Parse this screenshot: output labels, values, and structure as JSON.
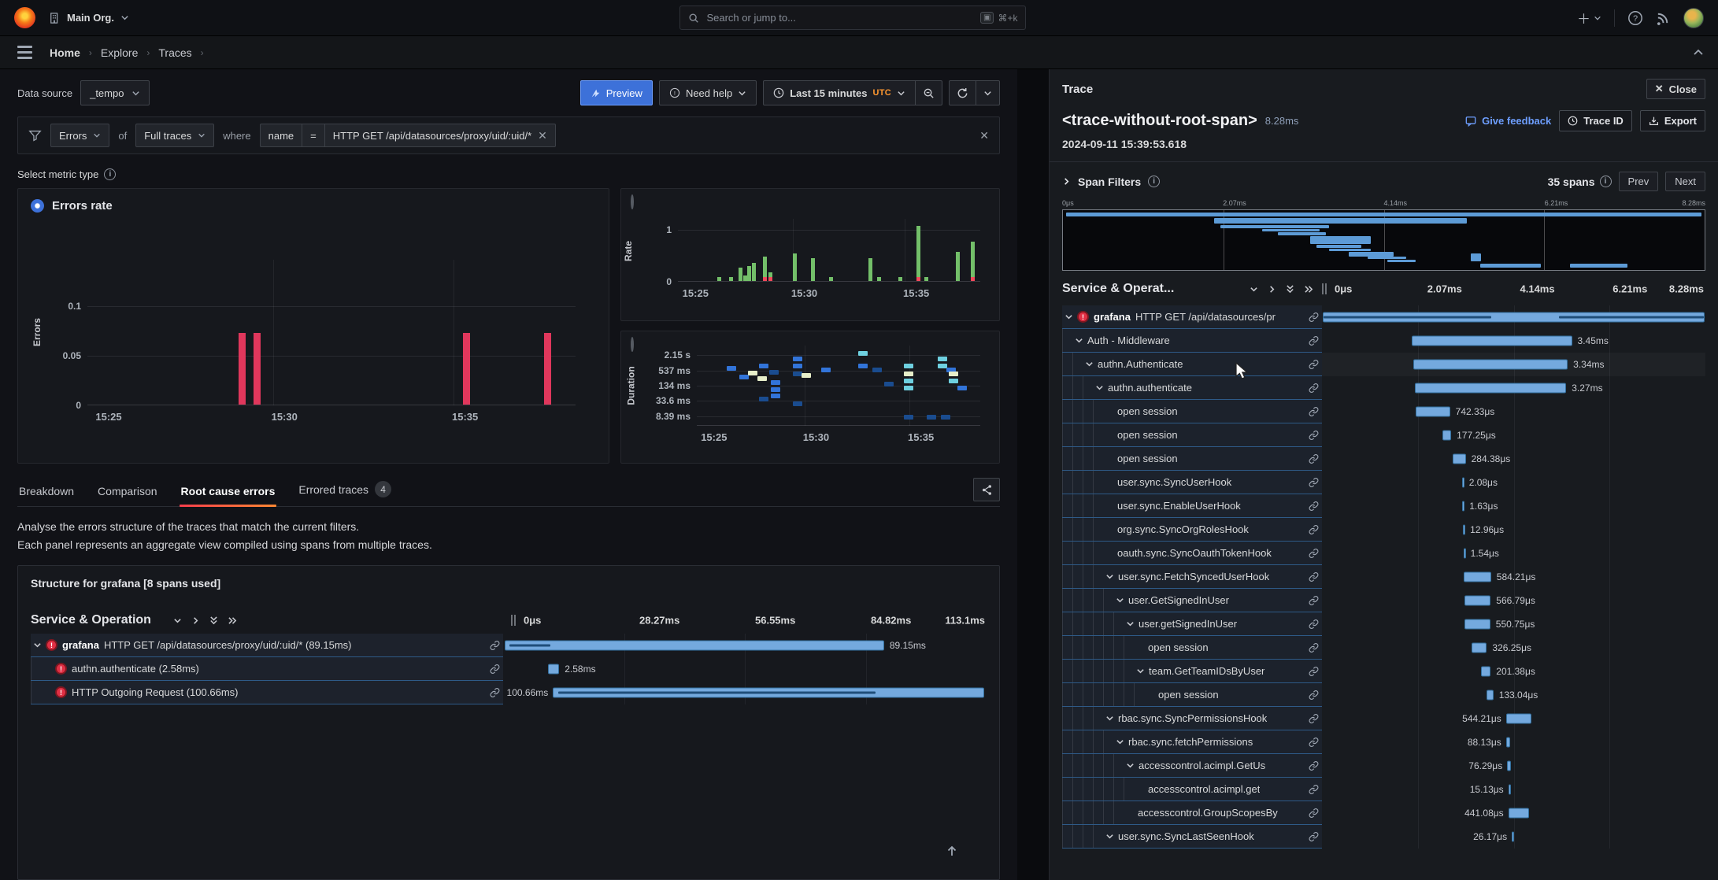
{
  "topnav": {
    "org": "Main Org.",
    "search_placeholder": "Search or jump to...",
    "search_shortcut": "⌘+k"
  },
  "breadcrumb": {
    "items": [
      "Home",
      "Explore",
      "Traces"
    ]
  },
  "query": {
    "datasource_label": "Data source",
    "datasource_value": "_tempo",
    "preview_label": "Preview",
    "need_help_label": "Need help",
    "time_range_label": "Last 15 minutes",
    "time_zone": "UTC"
  },
  "filter": {
    "metric": "Errors",
    "of_label": "of",
    "scope": "Full traces",
    "where_label": "where",
    "attr": "name",
    "op": "=",
    "value": "HTTP GET /api/datasources/proxy/uid/:uid/*"
  },
  "metric_select_label": "Select metric type",
  "tabs": {
    "items": [
      {
        "label": "Breakdown"
      },
      {
        "label": "Comparison"
      },
      {
        "label": "Root cause errors",
        "active": true
      },
      {
        "label": "Errored traces",
        "badge": "4"
      }
    ]
  },
  "description": {
    "line1": "Analyse the errors structure of the traces that match the current filters.",
    "line2": "Each panel represents an aggregate view compiled using spans from multiple traces."
  },
  "structure": {
    "title": "Structure for grafana [8 spans used]",
    "header": "Service & Operation",
    "ticks": [
      "0μs",
      "28.27ms",
      "56.55ms",
      "84.82ms",
      "113.1ms"
    ],
    "name_col_width": 600,
    "rows": [
      {
        "service": "grafana",
        "name": "HTTP GET /api/datasources/proxy/uid/:uid/* (89.15ms)",
        "depth": 0,
        "chevron": true,
        "error": true,
        "dur": "89.15ms",
        "bar": [
          0.3,
          78.5
        ],
        "side": "right",
        "stripes": [
          [
            1,
            11
          ]
        ]
      },
      {
        "name": "authn.authenticate (2.58ms)",
        "depth": 1,
        "chevron": false,
        "error": true,
        "dur": "2.58ms",
        "bar": [
          9.3,
          2.3
        ],
        "side": "right"
      },
      {
        "name": "HTTP Outgoing Request (100.66ms)",
        "depth": 1,
        "chevron": false,
        "error": true,
        "dur": "100.66ms",
        "bar": [
          10.3,
          89.2
        ],
        "side": "left",
        "stripes": [
          [
            1,
            74
          ]
        ]
      }
    ]
  },
  "trace": {
    "panel_title": "Trace",
    "close_label": "Close",
    "title": "<trace-without-root-span>",
    "duration": "8.28ms",
    "timestamp": "2024-09-11 15:39:53.618",
    "feedback_label": "Give feedback",
    "trace_id_label": "Trace ID",
    "export_label": "Export",
    "span_filters_label": "Span Filters",
    "span_count": "35 spans",
    "prev_label": "Prev",
    "next_label": "Next",
    "header": "Service & Operat...",
    "ticks": [
      "0μs",
      "2.07ms",
      "4.14ms",
      "6.21ms",
      "8.28ms"
    ],
    "name_col_width": 330,
    "minimap_spans": [
      [
        0.5,
        99,
        4,
        6
      ],
      [
        23.5,
        39.5,
        13,
        9
      ],
      [
        24.5,
        17,
        25,
        5
      ],
      [
        31,
        9,
        31,
        5
      ],
      [
        33.5,
        7.5,
        37,
        5
      ],
      [
        38.5,
        9.5,
        44,
        12
      ],
      [
        39.5,
        7,
        58,
        5
      ],
      [
        41.5,
        6.5,
        64,
        5
      ],
      [
        44.5,
        7,
        70,
        7
      ],
      [
        47.5,
        6,
        78,
        4
      ],
      [
        50.5,
        4.5,
        83,
        4
      ],
      [
        63.5,
        1.6,
        72,
        14
      ],
      [
        65,
        9.5,
        90,
        6
      ],
      [
        79,
        9,
        90,
        6
      ]
    ],
    "rows": [
      {
        "service": "grafana",
        "name": "HTTP GET /api/datasources/pr",
        "depth": 0,
        "chevron": true,
        "error": true,
        "dur": "",
        "bar": [
          0.3,
          99.4
        ],
        "side": "right",
        "stripes": [
          [
            0,
            44
          ],
          [
            62,
            38
          ]
        ]
      },
      {
        "name": "Auth - Middleware",
        "depth": 1,
        "chevron": true,
        "dur": "3.45ms",
        "bar": [
          23.5,
          41.7
        ],
        "side": "right"
      },
      {
        "name": "authn.Authenticate",
        "depth": 2,
        "chevron": true,
        "dur": "3.34ms",
        "bar": [
          23.8,
          40.3
        ],
        "side": "right",
        "hover": true
      },
      {
        "name": "authn.authenticate",
        "depth": 3,
        "chevron": true,
        "dur": "3.27ms",
        "bar": [
          24.2,
          39.5
        ],
        "side": "right"
      },
      {
        "name": "open session",
        "depth": 4,
        "dur": "742.33μs",
        "bar": [
          24.4,
          9.0
        ],
        "side": "right"
      },
      {
        "name": "open session",
        "depth": 4,
        "dur": "177.25μs",
        "bar": [
          31.5,
          2.2
        ],
        "side": "right"
      },
      {
        "name": "open session",
        "depth": 4,
        "dur": "284.38μs",
        "bar": [
          34.0,
          3.5
        ],
        "side": "right"
      },
      {
        "name": "user.sync.SyncUserHook",
        "depth": 4,
        "dur": "2.08μs",
        "bar": [
          36.5,
          0.4
        ],
        "side": "right"
      },
      {
        "name": "user.sync.EnableUserHook",
        "depth": 4,
        "dur": "1.63μs",
        "bar": [
          36.6,
          0.4
        ],
        "side": "right"
      },
      {
        "name": "org.sync.SyncOrgRolesHook",
        "depth": 4,
        "dur": "12.96μs",
        "bar": [
          36.7,
          0.5
        ],
        "side": "right"
      },
      {
        "name": "oauth.sync.SyncOauthTokenHook",
        "depth": 4,
        "dur": "1.54μs",
        "bar": [
          36.9,
          0.4
        ],
        "side": "right"
      },
      {
        "name": "user.sync.FetchSyncedUserHook",
        "depth": 4,
        "chevron": true,
        "dur": "584.21μs",
        "bar": [
          37.0,
          7.1
        ],
        "side": "right"
      },
      {
        "name": "user.GetSignedInUser",
        "depth": 5,
        "chevron": true,
        "dur": "566.79μs",
        "bar": [
          37.1,
          6.9
        ],
        "side": "right"
      },
      {
        "name": "user.getSignedInUser",
        "depth": 6,
        "chevron": true,
        "dur": "550.75μs",
        "bar": [
          37.2,
          6.7
        ],
        "side": "right"
      },
      {
        "name": "open session",
        "depth": 7,
        "dur": "326.25μs",
        "bar": [
          39.0,
          4.0
        ],
        "side": "right"
      },
      {
        "name": "team.GetTeamIDsByUser",
        "depth": 7,
        "chevron": true,
        "dur": "201.38μs",
        "bar": [
          41.5,
          2.5
        ],
        "side": "right"
      },
      {
        "name": "open session",
        "depth": 8,
        "dur": "133.04μs",
        "bar": [
          43.0,
          1.7
        ],
        "side": "right"
      },
      {
        "name": "rbac.sync.SyncPermissionsHook",
        "depth": 4,
        "chevron": true,
        "dur": "544.21μs",
        "bar": [
          48.0,
          6.6
        ],
        "side": "left"
      },
      {
        "name": "rbac.sync.fetchPermissions",
        "depth": 5,
        "chevron": true,
        "dur": "88.13μs",
        "bar": [
          48.0,
          1.1
        ],
        "side": "left"
      },
      {
        "name": "accesscontrol.acimpl.GetUs",
        "depth": 6,
        "chevron": true,
        "dur": "76.29μs",
        "bar": [
          48.3,
          1.0
        ],
        "side": "left"
      },
      {
        "name": "accesscontrol.acimpl.get",
        "depth": 7,
        "dur": "15.13μs",
        "bar": [
          48.6,
          0.4
        ],
        "side": "left"
      },
      {
        "name": "accesscontrol.GroupScopesBy",
        "depth": 6,
        "dur": "441.08μs",
        "bar": [
          48.6,
          5.4
        ],
        "side": "left"
      },
      {
        "name": "user.sync.SyncLastSeenHook",
        "depth": 4,
        "chevron": true,
        "dur": "26.17μs",
        "bar": [
          49.5,
          0.5
        ],
        "side": "left"
      }
    ]
  },
  "chart_data": [
    {
      "type": "bar",
      "title": "Errors rate",
      "ylabel": "Errors",
      "yticks": [
        "0",
        "0.05",
        "0.1"
      ],
      "ytick_pos": [
        100,
        66,
        32
      ],
      "xticks": [
        "15:25",
        "15:30",
        "15:35"
      ],
      "xtick_pos": [
        2,
        38,
        75
      ],
      "ylim": [
        0,
        0.15
      ],
      "x": [
        "15:28:30",
        "15:29:00",
        "15:36:30",
        "15:39:00"
      ],
      "values": [
        0.072,
        0.072,
        0.072,
        0.072
      ],
      "bars_pct": [
        [
          31,
          49
        ],
        [
          34,
          49
        ],
        [
          77,
          49
        ],
        [
          93.5,
          49
        ]
      ],
      "bar_color": "#e0375c"
    },
    {
      "type": "bar",
      "title": "Rate",
      "ylabel": "Rate",
      "yticks": [
        "0",
        "1"
      ],
      "ytick_pos": [
        100,
        18
      ],
      "xticks": [
        "15:25",
        "15:30",
        "15:35"
      ],
      "xtick_pos": [
        2,
        38,
        75
      ],
      "ylim": [
        0,
        1.2
      ],
      "series": [
        {
          "name": "rate",
          "x_pct": [
            13,
            17,
            20,
            21.5,
            23,
            24.5,
            28,
            30,
            38,
            44,
            50,
            63,
            66,
            73,
            79,
            81.5,
            92,
            97
          ],
          "values": [
            0.07,
            0.07,
            0.26,
            0.1,
            0.29,
            0.35,
            0.47,
            0.16,
            0.52,
            0.44,
            0.07,
            0.44,
            0.07,
            0.07,
            1.05,
            0.07,
            0.55,
            0.75
          ],
          "error_x_pct": [
            28,
            30,
            79,
            97
          ]
        }
      ],
      "bar_color": "#73bf69",
      "error_color": "#f2495c"
    },
    {
      "type": "heatmap",
      "title": "Duration",
      "ylabel": "Duration",
      "yticks": [
        "2.15 s",
        "537 ms",
        "134 ms",
        "33.6 ms",
        "8.39 ms"
      ],
      "ytick_pos": [
        12,
        31,
        50,
        69,
        88
      ],
      "xticks": [
        "15:25",
        "15:30",
        "15:35"
      ],
      "xtick_pos": [
        2,
        38,
        75
      ],
      "cells": [
        [
          10.5,
          25,
          "b"
        ],
        [
          15,
          36,
          "b"
        ],
        [
          18,
          31,
          "m"
        ],
        [
          21.5,
          38,
          "m"
        ],
        [
          22,
          23,
          "b"
        ],
        [
          25.5,
          30,
          "B"
        ],
        [
          26,
          43,
          "b"
        ],
        [
          26,
          52,
          "b"
        ],
        [
          26,
          60,
          "b"
        ],
        [
          22,
          64,
          "B"
        ],
        [
          34,
          14,
          "b"
        ],
        [
          34,
          23,
          "b"
        ],
        [
          34,
          32,
          "B"
        ],
        [
          37,
          34,
          "m"
        ],
        [
          34,
          70,
          "B"
        ],
        [
          44,
          27,
          "b"
        ],
        [
          57,
          7,
          "c"
        ],
        [
          57,
          23,
          "b"
        ],
        [
          62,
          27,
          "B"
        ],
        [
          66,
          45,
          "B"
        ],
        [
          73,
          86,
          "B"
        ],
        [
          73,
          23,
          "c"
        ],
        [
          73,
          32,
          "m"
        ],
        [
          73,
          41,
          "c"
        ],
        [
          73,
          50,
          "c"
        ],
        [
          81,
          86,
          "B"
        ],
        [
          85,
          14,
          "c"
        ],
        [
          85,
          23,
          "c"
        ],
        [
          88,
          27,
          "b"
        ],
        [
          89,
          32,
          "m"
        ],
        [
          89,
          41,
          "c"
        ],
        [
          92,
          50,
          "b"
        ],
        [
          86,
          86,
          "B"
        ]
      ],
      "colors": {
        "b": "#3274d9",
        "B": "#1a4c8f",
        "c": "#6ed0e0",
        "m": "#e7eec9"
      }
    }
  ]
}
